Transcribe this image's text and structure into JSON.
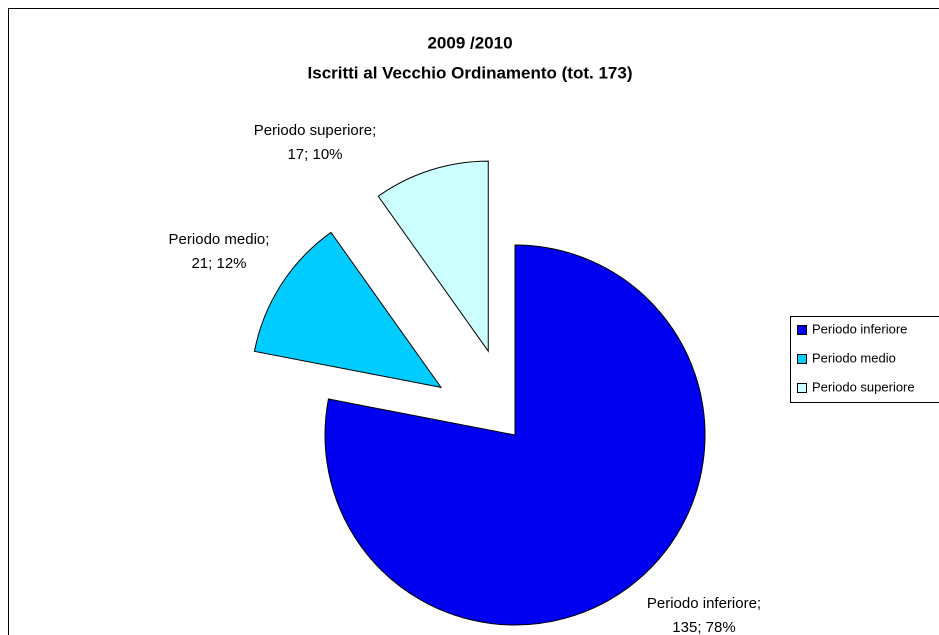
{
  "chart_data": {
    "type": "pie",
    "title": [
      "2009 /2010",
      "Iscritti al Vecchio Ordinamento (tot. 173)"
    ],
    "categories": [
      "Periodo inferiore",
      "Periodo medio",
      "Periodo superiore"
    ],
    "values": [
      135,
      21,
      17
    ],
    "data_labels": [
      "Periodo inferiore;",
      "Periodo medio;",
      "Periodo superiore;"
    ],
    "value_labels": [
      "135; 78%",
      "21; 12%",
      "17; 10%"
    ],
    "colors": [
      "#0000f0",
      "#00ccff",
      "#ccffff"
    ],
    "exploded": [
      false,
      true,
      true
    ],
    "legend": "right"
  }
}
